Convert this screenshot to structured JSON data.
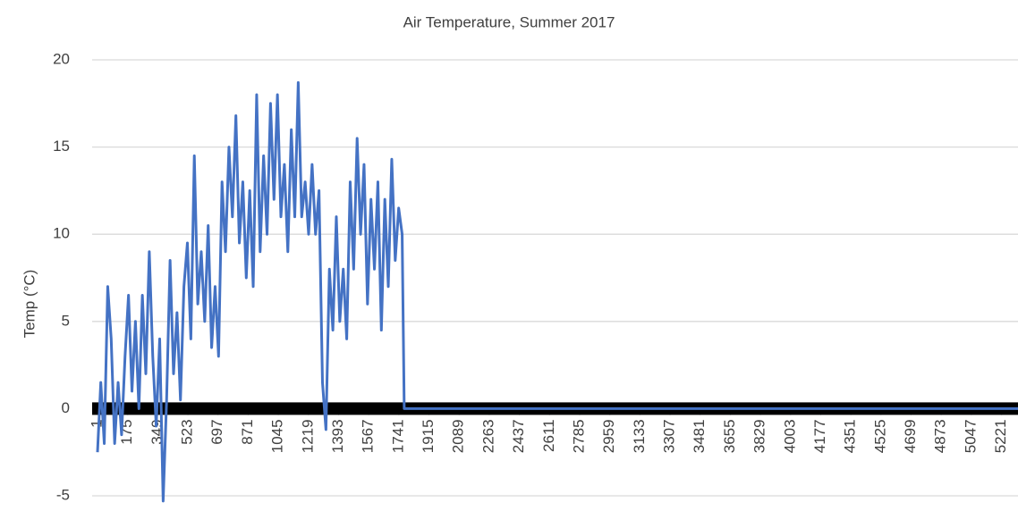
{
  "chart_data": {
    "type": "line",
    "title": "Air Temperature, Summer 2017",
    "y_label": "Temp (°C)",
    "x": [
      1,
      20,
      40,
      60,
      80,
      100,
      120,
      140,
      160,
      180,
      200,
      220,
      240,
      260,
      280,
      300,
      320,
      340,
      360,
      380,
      400,
      420,
      440,
      460,
      480,
      500,
      520,
      540,
      560,
      580,
      600,
      620,
      640,
      660,
      680,
      700,
      720,
      740,
      760,
      780,
      800,
      820,
      840,
      860,
      880,
      900,
      920,
      940,
      960,
      980,
      1000,
      1020,
      1040,
      1060,
      1080,
      1100,
      1120,
      1140,
      1160,
      1180,
      1200,
      1220,
      1240,
      1260,
      1280,
      1300,
      1320,
      1340,
      1360,
      1380,
      1400,
      1420,
      1440,
      1460,
      1480,
      1500,
      1520,
      1540,
      1560,
      1580,
      1600,
      1620,
      1640,
      1660,
      1680,
      1700,
      1720,
      1740,
      1760,
      1772,
      5316
    ],
    "series": [
      {
        "name": "Temp",
        "color": "#4472c4",
        "values": [
          -2.5,
          1.5,
          -2,
          7,
          4,
          -2,
          1.5,
          -1.5,
          3,
          6.5,
          1,
          5,
          0,
          6.5,
          2,
          9,
          3,
          -1,
          4,
          -5.3,
          0.5,
          8.5,
          2,
          5.5,
          0.5,
          7,
          9.5,
          4,
          14.5,
          6,
          9,
          5,
          10.5,
          3.5,
          7,
          3,
          13,
          9,
          15,
          11,
          16.8,
          9.5,
          13,
          7.5,
          12.5,
          7,
          18,
          9,
          14.5,
          10,
          17.5,
          12,
          18,
          11,
          14,
          9,
          16,
          11,
          18.7,
          11,
          13,
          10,
          14,
          10,
          12.5,
          1.5,
          -1.2,
          8,
          4.5,
          11,
          5,
          8,
          4,
          13,
          8,
          15.5,
          10,
          14,
          6,
          12,
          8,
          13,
          4.5,
          12,
          7,
          14.3,
          8.5,
          11.5,
          10,
          0,
          0
        ]
      }
    ],
    "xlim": [
      1,
      5316
    ],
    "xticks": [
      1,
      175,
      349,
      523,
      697,
      871,
      1045,
      1219,
      1393,
      1567,
      1741,
      1915,
      2089,
      2263,
      2437,
      2611,
      2785,
      2959,
      3133,
      3307,
      3481,
      3655,
      3829,
      4003,
      4177,
      4351,
      4525,
      4699,
      4873,
      5047,
      5221
    ],
    "ylim": [
      -5,
      20
    ],
    "yticks": [
      -5,
      0,
      5,
      10,
      15,
      20
    ],
    "grid": true
  }
}
